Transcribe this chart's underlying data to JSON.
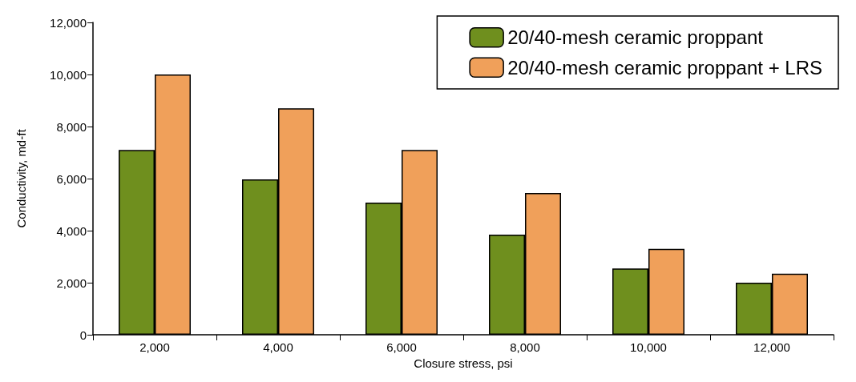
{
  "chart_data": {
    "type": "bar",
    "xlabel": "Closure stress, psi",
    "ylabel": "Conductivity, md-ft",
    "categories": [
      "2,000",
      "4,000",
      "6,000",
      "8,000",
      "10,000",
      "12,000"
    ],
    "series": [
      {
        "name": "20/40-mesh ceramic proppant",
        "color": "#6f8f1e",
        "values": [
          7100,
          5970,
          5080,
          3850,
          2550,
          2000
        ]
      },
      {
        "name": "20/40-mesh ceramic proppant + LRS",
        "color": "#f0a05a",
        "values": [
          10000,
          8700,
          7100,
          5450,
          3300,
          2350
        ]
      }
    ],
    "ylim": [
      0,
      12000
    ],
    "yticks": [
      {
        "value": 0,
        "label": "0"
      },
      {
        "value": 2000,
        "label": "2,000"
      },
      {
        "value": 4000,
        "label": "4,000"
      },
      {
        "value": 6000,
        "label": "6,000"
      },
      {
        "value": 8000,
        "label": "8,000"
      },
      {
        "value": 10000,
        "label": "10,000"
      },
      {
        "value": 12000,
        "label": "12,000"
      }
    ],
    "grid": false,
    "legend": "top right"
  }
}
